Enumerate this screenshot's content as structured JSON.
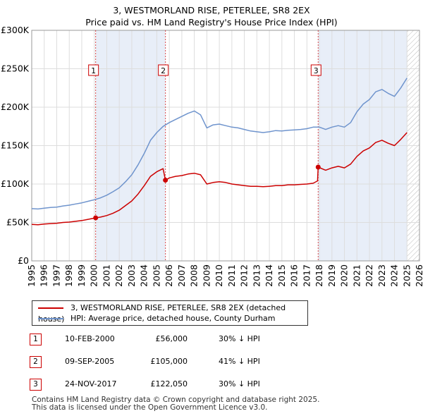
{
  "title": "3, WESTMORLAND RISE, PETERLEE, SR8 2EX",
  "subtitle": "Price paid vs. HM Land Registry's House Price Index (HPI)",
  "chart_data": {
    "type": "line",
    "ylim": [
      0,
      300000
    ],
    "xlim": [
      1995.0,
      2026.0
    ],
    "yticks": [
      {
        "value": 0,
        "label": "£0"
      },
      {
        "value": 50000,
        "label": "£50K"
      },
      {
        "value": 100000,
        "label": "£100K"
      },
      {
        "value": 150000,
        "label": "£150K"
      },
      {
        "value": 200000,
        "label": "£200K"
      },
      {
        "value": 250000,
        "label": "£250K"
      },
      {
        "value": 300000,
        "label": "£300K"
      }
    ],
    "xticks": [
      "1995",
      "1996",
      "1997",
      "1998",
      "1999",
      "2000",
      "2001",
      "2002",
      "2003",
      "2004",
      "2005",
      "2006",
      "2007",
      "2008",
      "2009",
      "2010",
      "2011",
      "2012",
      "2013",
      "2014",
      "2015",
      "2016",
      "2017",
      "2018",
      "2019",
      "2020",
      "2021",
      "2022",
      "2023",
      "2024",
      "2025",
      "2026"
    ],
    "series": [
      {
        "name": "3, WESTMORLAND RISE, PETERLEE, SR8 2EX (detached house)",
        "color": "#cc0000",
        "points": [
          [
            1995.0,
            47500
          ],
          [
            1995.5,
            47000
          ],
          [
            1996.0,
            48000
          ],
          [
            1996.5,
            48500
          ],
          [
            1997.0,
            49000
          ],
          [
            1997.5,
            50000
          ],
          [
            1998.0,
            50500
          ],
          [
            1998.5,
            51500
          ],
          [
            1999.0,
            52500
          ],
          [
            1999.5,
            54000
          ],
          [
            2000.11,
            56000
          ],
          [
            2000.5,
            57000
          ],
          [
            2001.0,
            59000
          ],
          [
            2001.5,
            62000
          ],
          [
            2002.0,
            66000
          ],
          [
            2002.5,
            72000
          ],
          [
            2003.0,
            78000
          ],
          [
            2003.5,
            87000
          ],
          [
            2004.0,
            98000
          ],
          [
            2004.5,
            110000
          ],
          [
            2005.0,
            116000
          ],
          [
            2005.5,
            120000
          ],
          [
            2005.69,
            105000
          ],
          [
            2006.0,
            108000
          ],
          [
            2006.5,
            110000
          ],
          [
            2007.0,
            111000
          ],
          [
            2007.5,
            113000
          ],
          [
            2008.0,
            114000
          ],
          [
            2008.5,
            112000
          ],
          [
            2009.0,
            100000
          ],
          [
            2009.5,
            102000
          ],
          [
            2010.0,
            103000
          ],
          [
            2010.5,
            102000
          ],
          [
            2011.0,
            100000
          ],
          [
            2011.5,
            99000
          ],
          [
            2012.0,
            98000
          ],
          [
            2012.5,
            97000
          ],
          [
            2013.0,
            97000
          ],
          [
            2013.5,
            96500
          ],
          [
            2014.0,
            97000
          ],
          [
            2014.5,
            98000
          ],
          [
            2015.0,
            98000
          ],
          [
            2015.5,
            99000
          ],
          [
            2016.0,
            99000
          ],
          [
            2016.5,
            99500
          ],
          [
            2017.0,
            100000
          ],
          [
            2017.5,
            101000
          ],
          [
            2017.85,
            104000
          ],
          [
            2017.9,
            122050
          ],
          [
            2018.5,
            118000
          ],
          [
            2019.0,
            121000
          ],
          [
            2019.5,
            123000
          ],
          [
            2020.0,
            121000
          ],
          [
            2020.5,
            126000
          ],
          [
            2021.0,
            136000
          ],
          [
            2021.5,
            143000
          ],
          [
            2022.0,
            147000
          ],
          [
            2022.5,
            154000
          ],
          [
            2023.0,
            157000
          ],
          [
            2023.5,
            153000
          ],
          [
            2024.0,
            150000
          ],
          [
            2024.5,
            158000
          ],
          [
            2025.0,
            167000
          ]
        ]
      },
      {
        "name": "HPI: Average price, detached house, County Durham",
        "color": "#6f94cd",
        "points": [
          [
            1995.0,
            68000
          ],
          [
            1995.5,
            67500
          ],
          [
            1996.0,
            68500
          ],
          [
            1996.5,
            69500
          ],
          [
            1997.0,
            70000
          ],
          [
            1997.5,
            71500
          ],
          [
            1998.0,
            72500
          ],
          [
            1998.5,
            74000
          ],
          [
            1999.0,
            75500
          ],
          [
            1999.5,
            77500
          ],
          [
            2000.0,
            79500
          ],
          [
            2000.5,
            82000
          ],
          [
            2001.0,
            85500
          ],
          [
            2001.5,
            90000
          ],
          [
            2002.0,
            95000
          ],
          [
            2002.5,
            103000
          ],
          [
            2003.0,
            112000
          ],
          [
            2003.5,
            125000
          ],
          [
            2004.0,
            140000
          ],
          [
            2004.5,
            157000
          ],
          [
            2005.0,
            167000
          ],
          [
            2005.5,
            175000
          ],
          [
            2006.0,
            180000
          ],
          [
            2006.5,
            184000
          ],
          [
            2007.0,
            188000
          ],
          [
            2007.5,
            192000
          ],
          [
            2008.0,
            195000
          ],
          [
            2008.5,
            190000
          ],
          [
            2009.0,
            173000
          ],
          [
            2009.5,
            177000
          ],
          [
            2010.0,
            178000
          ],
          [
            2010.5,
            176000
          ],
          [
            2011.0,
            174000
          ],
          [
            2011.5,
            173000
          ],
          [
            2012.0,
            171000
          ],
          [
            2012.5,
            169000
          ],
          [
            2013.0,
            168000
          ],
          [
            2013.5,
            167000
          ],
          [
            2014.0,
            168000
          ],
          [
            2014.5,
            169500
          ],
          [
            2015.0,
            169000
          ],
          [
            2015.5,
            170000
          ],
          [
            2016.0,
            170500
          ],
          [
            2016.5,
            171000
          ],
          [
            2017.0,
            172000
          ],
          [
            2017.5,
            174000
          ],
          [
            2018.0,
            174000
          ],
          [
            2018.5,
            171000
          ],
          [
            2019.0,
            174000
          ],
          [
            2019.5,
            176000
          ],
          [
            2020.0,
            174000
          ],
          [
            2020.5,
            180000
          ],
          [
            2021.0,
            194000
          ],
          [
            2021.5,
            204000
          ],
          [
            2022.0,
            210000
          ],
          [
            2022.5,
            220000
          ],
          [
            2023.0,
            223000
          ],
          [
            2023.5,
            218000
          ],
          [
            2024.0,
            214000
          ],
          [
            2024.5,
            225000
          ],
          [
            2025.0,
            238000
          ]
        ]
      }
    ],
    "sales": [
      {
        "label": "1",
        "x": 2000.11,
        "value": 56000
      },
      {
        "label": "2",
        "x": 2005.69,
        "value": 105000
      },
      {
        "label": "3",
        "x": 2017.9,
        "value": 122050
      }
    ]
  },
  "legend": {
    "property": "3, WESTMORLAND RISE, PETERLEE, SR8 2EX (detached house)",
    "hpi": "HPI: Average price, detached house, County Durham"
  },
  "sales_table": [
    {
      "num": "1",
      "date": "10-FEB-2000",
      "price": "£56,000",
      "hpi": "30% ↓ HPI"
    },
    {
      "num": "2",
      "date": "09-SEP-2005",
      "price": "£105,000",
      "hpi": "41% ↓ HPI"
    },
    {
      "num": "3",
      "date": "24-NOV-2017",
      "price": "£122,050",
      "hpi": "30% ↓ HPI"
    }
  ],
  "footer": {
    "line1": "Contains HM Land Registry data © Crown copyright and database right 2025.",
    "line2": "This data is licensed under the Open Government Licence v3.0."
  },
  "colors": {
    "property": "#cc0000",
    "hpi": "#6f94cd",
    "shade": "#e8eef8",
    "grid": "#dddddd"
  }
}
